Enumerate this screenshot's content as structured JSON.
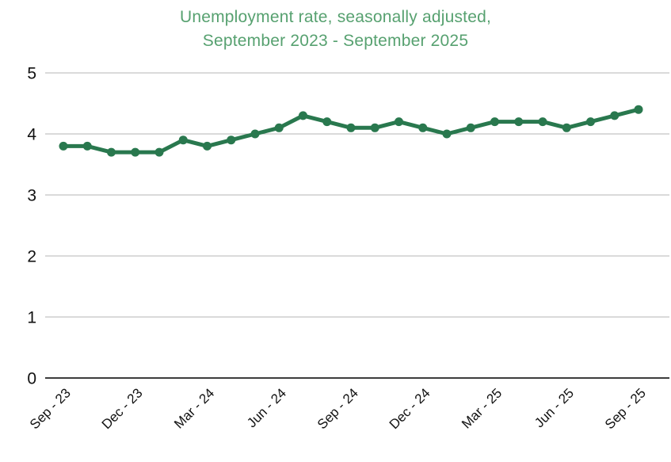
{
  "chart_data": {
    "type": "line",
    "title": "Unemployment rate, seasonally adjusted, September 2023 - September 2025",
    "title_lines": [
      "Unemployment rate, seasonally adjusted,",
      "September 2023 - September 2025"
    ],
    "categories": [
      "Sep-23",
      "Oct-23",
      "Nov-23",
      "Dec-23",
      "Jan-24",
      "Feb-24",
      "Mar-24",
      "Apr-24",
      "May-24",
      "Jun-24",
      "Jul-24",
      "Aug-24",
      "Sep-24",
      "Oct-24",
      "Nov-24",
      "Dec-24",
      "Jan-25",
      "Feb-25",
      "Mar-25",
      "Apr-25",
      "May-25",
      "Jun-25",
      "Jul-25",
      "Aug-25",
      "Sep-25"
    ],
    "series": [
      {
        "name": "Unemployment rate",
        "values": [
          3.8,
          3.8,
          3.7,
          3.7,
          3.7,
          3.9,
          3.8,
          3.9,
          4.0,
          4.1,
          4.3,
          4.2,
          4.1,
          4.1,
          4.2,
          4.1,
          4.0,
          4.1,
          4.2,
          4.2,
          4.2,
          4.1,
          4.2,
          4.3,
          4.4
        ]
      }
    ],
    "x_tick_labels": [
      "Sep - 23",
      "Dec - 23",
      "Mar - 24",
      "Jun - 24",
      "Sep - 24",
      "Dec - 24",
      "Mar - 25",
      "Jun - 25",
      "Sep - 25"
    ],
    "y_tick_labels": [
      "0",
      "1",
      "2",
      "3",
      "4",
      "5"
    ],
    "ylim": [
      0,
      5
    ],
    "xlabel": "",
    "ylabel": "",
    "grid": "horizontal",
    "legend": "none",
    "colors": {
      "line": "#29784e",
      "marker": "#29784e",
      "title": "#57a170",
      "gridline": "#b5b5b5",
      "zero_line": "#3d3d3d",
      "tick_text": "#111111"
    }
  }
}
